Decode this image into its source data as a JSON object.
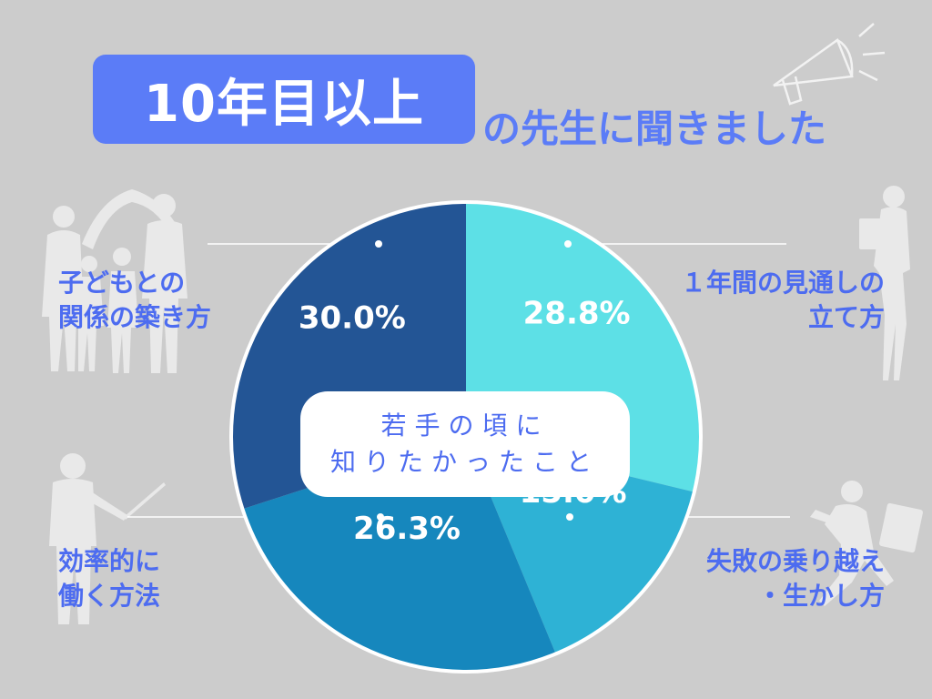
{
  "title": {
    "highlight": "10年目以上",
    "rest": "の先生に聞きました"
  },
  "center_label": {
    "line1": "若手の頃に",
    "line2": "知りたかったこと"
  },
  "categories": [
    {
      "line1": "子どもとの",
      "line2": "関係の築き方"
    },
    {
      "line1": "１年間の見通しの",
      "line2": "立て方"
    },
    {
      "line1": "効率的に",
      "line2": "働く方法"
    },
    {
      "line1": "失敗の乗り越え",
      "line2": "・生かし方"
    }
  ],
  "chart_data": {
    "type": "pie",
    "start_angle": "12 o'clock",
    "direction": "clockwise",
    "slices": [
      {
        "category": "１年間の見通しの立て方",
        "value": 28.8,
        "label": "28.8%",
        "color": "#5de0e6"
      },
      {
        "category": "失敗の乗り越え・生かし方",
        "value": 15.0,
        "label": "15.0%",
        "color": "#2eb2d5"
      },
      {
        "category": "効率的に働く方法",
        "value": 26.3,
        "label": "26.3%",
        "color": "#1687bd"
      },
      {
        "category": "子どもとの関係の築き方",
        "value": 30.0,
        "label": "30.0%",
        "color": "#235595"
      }
    ]
  },
  "colors": {
    "accent": "#5b7cf7",
    "label_text": "#4d6cf0",
    "background": "#cccccc"
  }
}
